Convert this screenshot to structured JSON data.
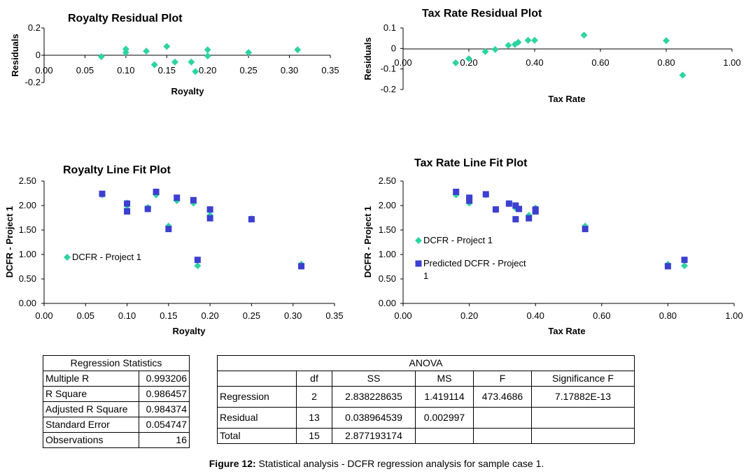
{
  "chart_data": [
    {
      "id": "royalty-residual",
      "type": "scatter",
      "title": "Royalty  Residual Plot",
      "xlabel": "Royalty",
      "ylabel": "Residuals",
      "xlim": [
        0,
        0.35
      ],
      "ylim": [
        -0.2,
        0.2
      ],
      "x_ticks": [
        "0.00",
        "0.05",
        "0.10",
        "0.15",
        "0.20",
        "0.25",
        "0.30",
        "0.35"
      ],
      "y_ticks": [
        "0.2",
        "0",
        "-0.2"
      ],
      "series": [
        {
          "color": "#2ed3a0",
          "marker": "diamond",
          "points": [
            [
              0.07,
              -0.01
            ],
            [
              0.1,
              0.045
            ],
            [
              0.1,
              0.02
            ],
            [
              0.125,
              0.03
            ],
            [
              0.135,
              -0.07
            ],
            [
              0.15,
              0.065
            ],
            [
              0.16,
              -0.05
            ],
            [
              0.18,
              -0.05
            ],
            [
              0.185,
              -0.12
            ],
            [
              0.2,
              0.04
            ],
            [
              0.2,
              -0.005
            ],
            [
              0.25,
              0.02
            ],
            [
              0.31,
              0.04
            ]
          ]
        }
      ]
    },
    {
      "id": "taxrate-residual",
      "type": "scatter",
      "title": "Tax Rate  Residual Plot",
      "xlabel": "Tax Rate",
      "ylabel": "Residuals",
      "xlim": [
        0,
        1
      ],
      "ylim": [
        -0.2,
        0.1
      ],
      "x_ticks": [
        "0.00",
        "0.20",
        "0.40",
        "0.60",
        "0.80",
        "1.00"
      ],
      "y_ticks": [
        "0.1",
        "0",
        "-0.1",
        "-0.2"
      ],
      "series": [
        {
          "color": "#2ed3a0",
          "marker": "diamond",
          "points": [
            [
              0.16,
              -0.07
            ],
            [
              0.2,
              -0.05
            ],
            [
              0.25,
              -0.015
            ],
            [
              0.28,
              -0.005
            ],
            [
              0.32,
              0.015
            ],
            [
              0.34,
              0.02
            ],
            [
              0.35,
              0.03
            ],
            [
              0.38,
              0.04
            ],
            [
              0.4,
              0.04
            ],
            [
              0.55,
              0.065
            ],
            [
              0.8,
              0.038
            ],
            [
              0.85,
              -0.13
            ]
          ]
        }
      ]
    },
    {
      "id": "royalty-linefit",
      "type": "scatter",
      "title": "Royalty Line Fit  Plot",
      "xlabel": "Royalty",
      "ylabel": "DCFR - Project 1",
      "xlim": [
        0,
        0.35
      ],
      "ylim": [
        0,
        2.5
      ],
      "x_ticks": [
        "0.00",
        "0.05",
        "0.10",
        "0.15",
        "0.20",
        "0.25",
        "0.30",
        "0.35"
      ],
      "y_ticks": [
        "2.50",
        "2.00",
        "1.50",
        "1.00",
        "0.50",
        "0.00"
      ],
      "series": [
        {
          "name": "DCFR - Project 1",
          "color": "#2ed3a0",
          "marker": "diamond",
          "points": [
            [
              0.07,
              2.22
            ],
            [
              0.1,
              2.05
            ],
            [
              0.1,
              1.93
            ],
            [
              0.125,
              1.96
            ],
            [
              0.135,
              2.22
            ],
            [
              0.15,
              1.58
            ],
            [
              0.16,
              2.1
            ],
            [
              0.18,
              2.05
            ],
            [
              0.185,
              0.77
            ],
            [
              0.2,
              1.9
            ],
            [
              0.2,
              1.8
            ],
            [
              0.25,
              1.73
            ],
            [
              0.31,
              0.8
            ]
          ]
        },
        {
          "color": "#3c3fcf",
          "marker": "square",
          "points": [
            [
              0.07,
              2.24
            ],
            [
              0.1,
              2.04
            ],
            [
              0.1,
              1.88
            ],
            [
              0.125,
              1.93
            ],
            [
              0.135,
              2.28
            ],
            [
              0.15,
              1.52
            ],
            [
              0.16,
              2.16
            ],
            [
              0.18,
              2.11
            ],
            [
              0.185,
              0.89
            ],
            [
              0.2,
              1.92
            ],
            [
              0.2,
              1.74
            ],
            [
              0.25,
              1.72
            ],
            [
              0.31,
              0.76
            ]
          ]
        }
      ],
      "legend": "left"
    },
    {
      "id": "taxrate-linefit",
      "type": "scatter",
      "title": "Tax Rate Line Fit  Plot",
      "xlabel": "Tax Rate",
      "ylabel": "DCFR - Project 1",
      "xlim": [
        0,
        1
      ],
      "ylim": [
        0,
        2.5
      ],
      "x_ticks": [
        "0.00",
        "0.20",
        "0.40",
        "0.60",
        "0.80",
        "1.00"
      ],
      "y_ticks": [
        "2.50",
        "2.00",
        "1.50",
        "1.00",
        "0.50",
        "0.00"
      ],
      "series": [
        {
          "name": "DCFR - Project 1",
          "color": "#2ed3a0",
          "marker": "diamond",
          "points": [
            [
              0.16,
              2.22
            ],
            [
              0.2,
              2.05
            ],
            [
              0.25,
              2.22
            ],
            [
              0.28,
              1.92
            ],
            [
              0.32,
              2.04
            ],
            [
              0.34,
              1.95
            ],
            [
              0.35,
              1.93
            ],
            [
              0.38,
              1.8
            ],
            [
              0.4,
              1.95
            ],
            [
              0.55,
              1.58
            ],
            [
              0.8,
              0.8
            ],
            [
              0.85,
              0.77
            ]
          ]
        },
        {
          "name": "Predicted DCFR - Project 1",
          "color": "#3c3fcf",
          "marker": "square",
          "points": [
            [
              0.16,
              2.28
            ],
            [
              0.2,
              2.16
            ],
            [
              0.2,
              2.1
            ],
            [
              0.25,
              2.23
            ],
            [
              0.28,
              1.92
            ],
            [
              0.32,
              2.04
            ],
            [
              0.34,
              2.0
            ],
            [
              0.34,
              1.72
            ],
            [
              0.35,
              1.93
            ],
            [
              0.38,
              1.74
            ],
            [
              0.4,
              1.88
            ],
            [
              0.4,
              1.92
            ],
            [
              0.55,
              1.52
            ],
            [
              0.8,
              0.76
            ],
            [
              0.85,
              0.89
            ]
          ]
        }
      ],
      "legend": "left"
    }
  ],
  "regression_statistics": {
    "title": "Regression Statistics",
    "rows": [
      {
        "label": "Multiple R",
        "value": "0.993206"
      },
      {
        "label": "R Square",
        "value": "0.986457"
      },
      {
        "label": "Adjusted R Square",
        "value": "0.984374"
      },
      {
        "label": "Standard Error",
        "value": "0.054747"
      },
      {
        "label": "Observations",
        "value": "16"
      }
    ]
  },
  "anova": {
    "title": "ANOVA",
    "headers": [
      "",
      "df",
      "SS",
      "MS",
      "F",
      "Significance F"
    ],
    "rows": [
      [
        "Regression",
        "2",
        "2.838228635",
        "1.419114",
        "473.4686",
        "7.17882E-13"
      ],
      [
        "Residual",
        "13",
        "0.038964539",
        "0.002997",
        "",
        ""
      ],
      [
        "Total",
        "15",
        "2.877193174",
        "",
        "",
        ""
      ]
    ]
  },
  "caption": {
    "label": "Figure 12:",
    "text": " Statistical analysis - DCFR regression analysis for sample case 1."
  }
}
